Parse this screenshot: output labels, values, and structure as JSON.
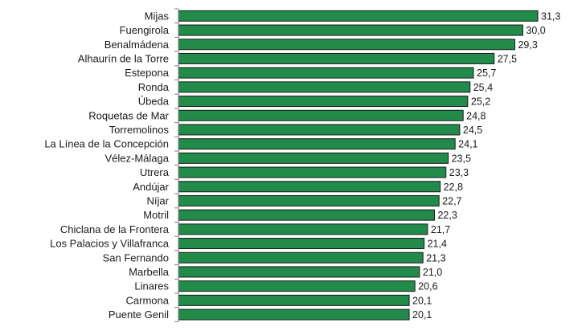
{
  "chart_data": {
    "type": "bar",
    "orientation": "horizontal",
    "categories": [
      "Mijas",
      "Fuengirola",
      "Benalmádena",
      "Alhaurín de la Torre",
      "Estepona",
      "Ronda",
      "Úbeda",
      "Roquetas de Mar",
      "Torremolinos",
      "La Línea de la Concepción",
      "Vélez-Málaga",
      "Utrera",
      "Andújar",
      "Níjar",
      "Motril",
      "Chiclana de la Frontera",
      "Los Palacios y Villafranca",
      "San Fernando",
      "Marbella",
      "Linares",
      "Carmona",
      "Puente Genil"
    ],
    "values": [
      31.3,
      30.0,
      29.3,
      27.5,
      25.7,
      25.4,
      25.2,
      24.8,
      24.5,
      24.1,
      23.5,
      23.3,
      22.8,
      22.7,
      22.3,
      21.7,
      21.4,
      21.3,
      21.0,
      20.6,
      20.1,
      20.1
    ],
    "value_labels": [
      "31,3",
      "30,0",
      "29,3",
      "27,5",
      "25,7",
      "25,4",
      "25,2",
      "24,8",
      "24,5",
      "24,1",
      "23,5",
      "23,3",
      "22,8",
      "22,7",
      "22,3",
      "21,7",
      "21,4",
      "21,3",
      "21,0",
      "20,6",
      "20,1",
      "20,1"
    ],
    "title": "",
    "xlabel": "",
    "ylabel": "",
    "xlim": [
      0,
      31.3
    ],
    "grid": false,
    "legend": "none",
    "bar_color": "#228b4a"
  }
}
